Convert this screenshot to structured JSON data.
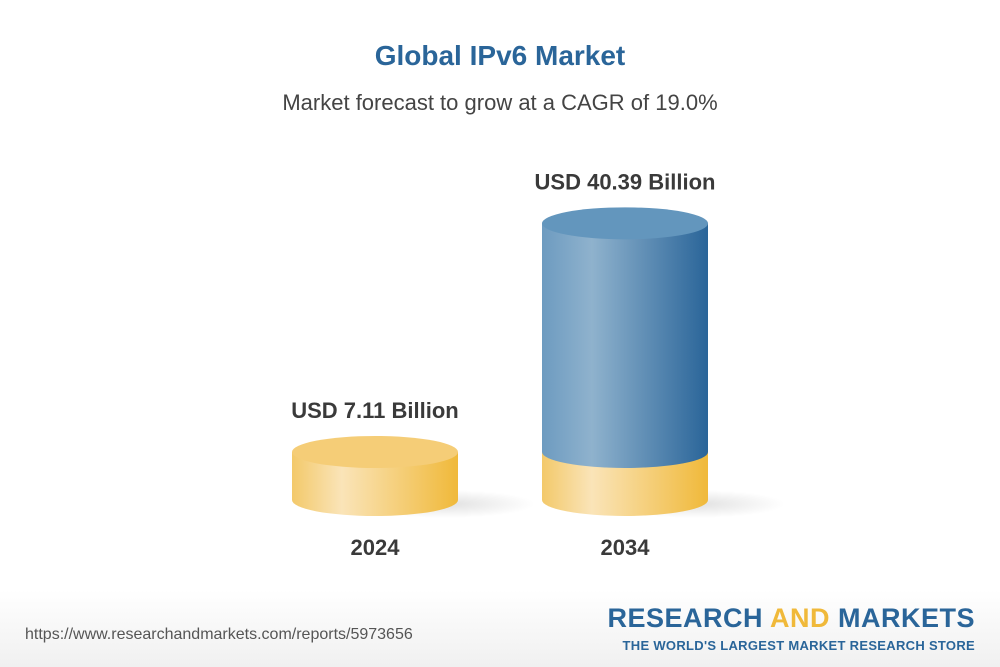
{
  "title": "Global IPv6 Market",
  "subtitle": "Market forecast to grow at a CAGR of 19.0%",
  "chart_data": {
    "type": "bar",
    "style": "3d-cylinder",
    "categories": [
      "2024",
      "2034"
    ],
    "values": [
      7.11,
      40.39
    ],
    "data_labels": [
      "USD 7.11 Billion",
      "USD 40.39 Billion"
    ],
    "unit": "USD Billion",
    "colors": {
      "base": "#f0b93a",
      "growth": "#2a6599"
    }
  },
  "footer": {
    "url": "https://www.researchandmarkets.com/reports/5973656",
    "logo_part1": "RESEARCH ",
    "logo_part2": "AND",
    "logo_part3": " MARKETS",
    "tagline": "THE WORLD'S LARGEST MARKET RESEARCH STORE"
  }
}
